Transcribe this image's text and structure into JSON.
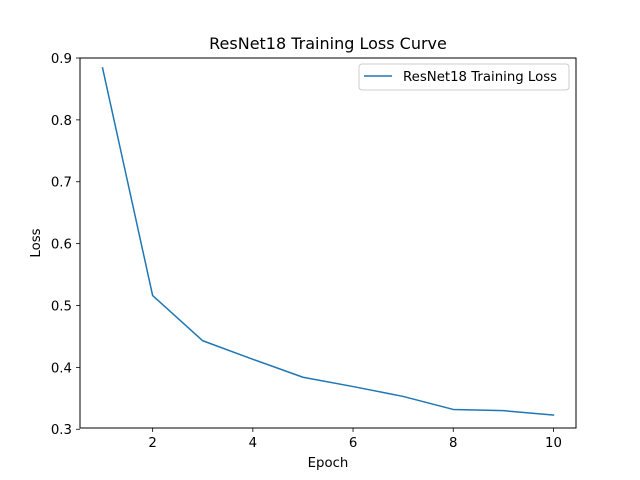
{
  "chart_data": {
    "type": "line",
    "title": "ResNet18 Training Loss Curve",
    "xlabel": "Epoch",
    "ylabel": "Loss",
    "xlim": [
      0.55,
      10.45
    ],
    "ylim": [
      0.302,
      0.9
    ],
    "xticks": [
      2,
      4,
      6,
      8,
      10
    ],
    "xtick_labels": [
      "2",
      "4",
      "6",
      "8",
      "10"
    ],
    "yticks": [
      0.3,
      0.4,
      0.5,
      0.6,
      0.7,
      0.8,
      0.9
    ],
    "ytick_labels": [
      "0.3",
      "0.4",
      "0.5",
      "0.6",
      "0.7",
      "0.8",
      "0.9"
    ],
    "grid": false,
    "legend_position": "top-right",
    "series": [
      {
        "name": "ResNet18 Training Loss",
        "color": "#1f77b4",
        "x": [
          1,
          2,
          3,
          4,
          5,
          6,
          7,
          8,
          9,
          10
        ],
        "values": [
          0.884,
          0.516,
          0.443,
          0.413,
          0.384,
          0.369,
          0.353,
          0.332,
          0.33,
          0.323
        ]
      }
    ]
  }
}
